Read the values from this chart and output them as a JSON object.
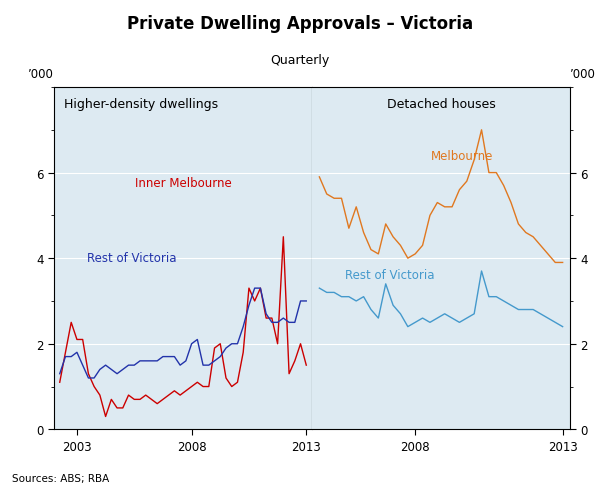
{
  "title": "Private Dwelling Approvals – Victoria",
  "subtitle": "Quarterly",
  "ylabel": "’000",
  "background_color": "#ddeaf2",
  "left_panel_label": "Higher-density dwellings",
  "right_panel_label": "Detached houses",
  "source_text": "Sources: ABS; RBA",
  "left_inner_melbourne_color": "#cc0000",
  "left_rest_vic_color": "#2233aa",
  "right_melbourne_color": "#e07820",
  "right_rest_vic_color": "#4499cc",
  "left_inner_melbourne_label": "Inner Melbourne",
  "left_rest_vic_label": "Rest of Victoria",
  "right_melbourne_label": "Melbourne",
  "right_rest_vic_label": "Rest of Victoria",
  "ylim": [
    0,
    8
  ],
  "yticks": [
    0,
    2,
    4,
    6
  ],
  "quarters_left": [
    2002.25,
    2002.5,
    2002.75,
    2003.0,
    2003.25,
    2003.5,
    2003.75,
    2004.0,
    2004.25,
    2004.5,
    2004.75,
    2005.0,
    2005.25,
    2005.5,
    2005.75,
    2006.0,
    2006.25,
    2006.5,
    2006.75,
    2007.0,
    2007.25,
    2007.5,
    2007.75,
    2008.0,
    2008.25,
    2008.5,
    2008.75,
    2009.0,
    2009.25,
    2009.5,
    2009.75,
    2010.0,
    2010.25,
    2010.5,
    2010.75,
    2011.0,
    2011.25,
    2011.5,
    2011.75,
    2012.0,
    2012.25,
    2012.5,
    2012.75,
    2013.0
  ],
  "inner_melbourne": [
    1.1,
    1.8,
    2.5,
    2.1,
    2.1,
    1.3,
    1.0,
    0.8,
    0.3,
    0.7,
    0.5,
    0.5,
    0.8,
    0.7,
    0.7,
    0.8,
    0.7,
    0.6,
    0.7,
    0.8,
    0.9,
    0.8,
    0.9,
    1.0,
    1.1,
    1.0,
    1.0,
    1.9,
    2.0,
    1.2,
    1.0,
    1.1,
    1.8,
    3.3,
    3.0,
    3.3,
    2.6,
    2.6,
    2.0,
    4.5,
    1.3,
    1.6,
    2.0,
    1.5
  ],
  "rest_victoria_left": [
    1.3,
    1.7,
    1.7,
    1.8,
    1.5,
    1.2,
    1.2,
    1.4,
    1.5,
    1.4,
    1.3,
    1.4,
    1.5,
    1.5,
    1.6,
    1.6,
    1.6,
    1.6,
    1.7,
    1.7,
    1.7,
    1.5,
    1.6,
    2.0,
    2.1,
    1.5,
    1.5,
    1.6,
    1.7,
    1.9,
    2.0,
    2.0,
    2.4,
    2.9,
    3.3,
    3.3,
    2.7,
    2.5,
    2.5,
    2.6,
    2.5,
    2.5,
    3.0,
    3.0
  ],
  "quarters_right": [
    2004.75,
    2005.0,
    2005.25,
    2005.5,
    2005.75,
    2006.0,
    2006.25,
    2006.5,
    2006.75,
    2007.0,
    2007.25,
    2007.5,
    2007.75,
    2008.0,
    2008.25,
    2008.5,
    2008.75,
    2009.0,
    2009.25,
    2009.5,
    2009.75,
    2010.0,
    2010.25,
    2010.5,
    2010.75,
    2011.0,
    2011.25,
    2011.5,
    2011.75,
    2012.0,
    2012.25,
    2012.5,
    2012.75,
    2013.0
  ],
  "melbourne": [
    5.9,
    5.5,
    5.4,
    5.4,
    4.7,
    5.2,
    4.6,
    4.2,
    4.1,
    4.8,
    4.5,
    4.3,
    4.0,
    4.1,
    4.3,
    5.0,
    5.3,
    5.2,
    5.2,
    5.6,
    5.8,
    6.3,
    7.0,
    6.0,
    6.0,
    5.7,
    5.3,
    4.8,
    4.6,
    4.5,
    4.3,
    4.1,
    3.9,
    3.9
  ],
  "rest_victoria_right": [
    3.3,
    3.2,
    3.2,
    3.1,
    3.1,
    3.0,
    3.1,
    2.8,
    2.6,
    3.4,
    2.9,
    2.7,
    2.4,
    2.5,
    2.6,
    2.5,
    2.6,
    2.7,
    2.6,
    2.5,
    2.6,
    2.7,
    3.7,
    3.1,
    3.1,
    3.0,
    2.9,
    2.8,
    2.8,
    2.8,
    2.7,
    2.6,
    2.5,
    2.4
  ]
}
